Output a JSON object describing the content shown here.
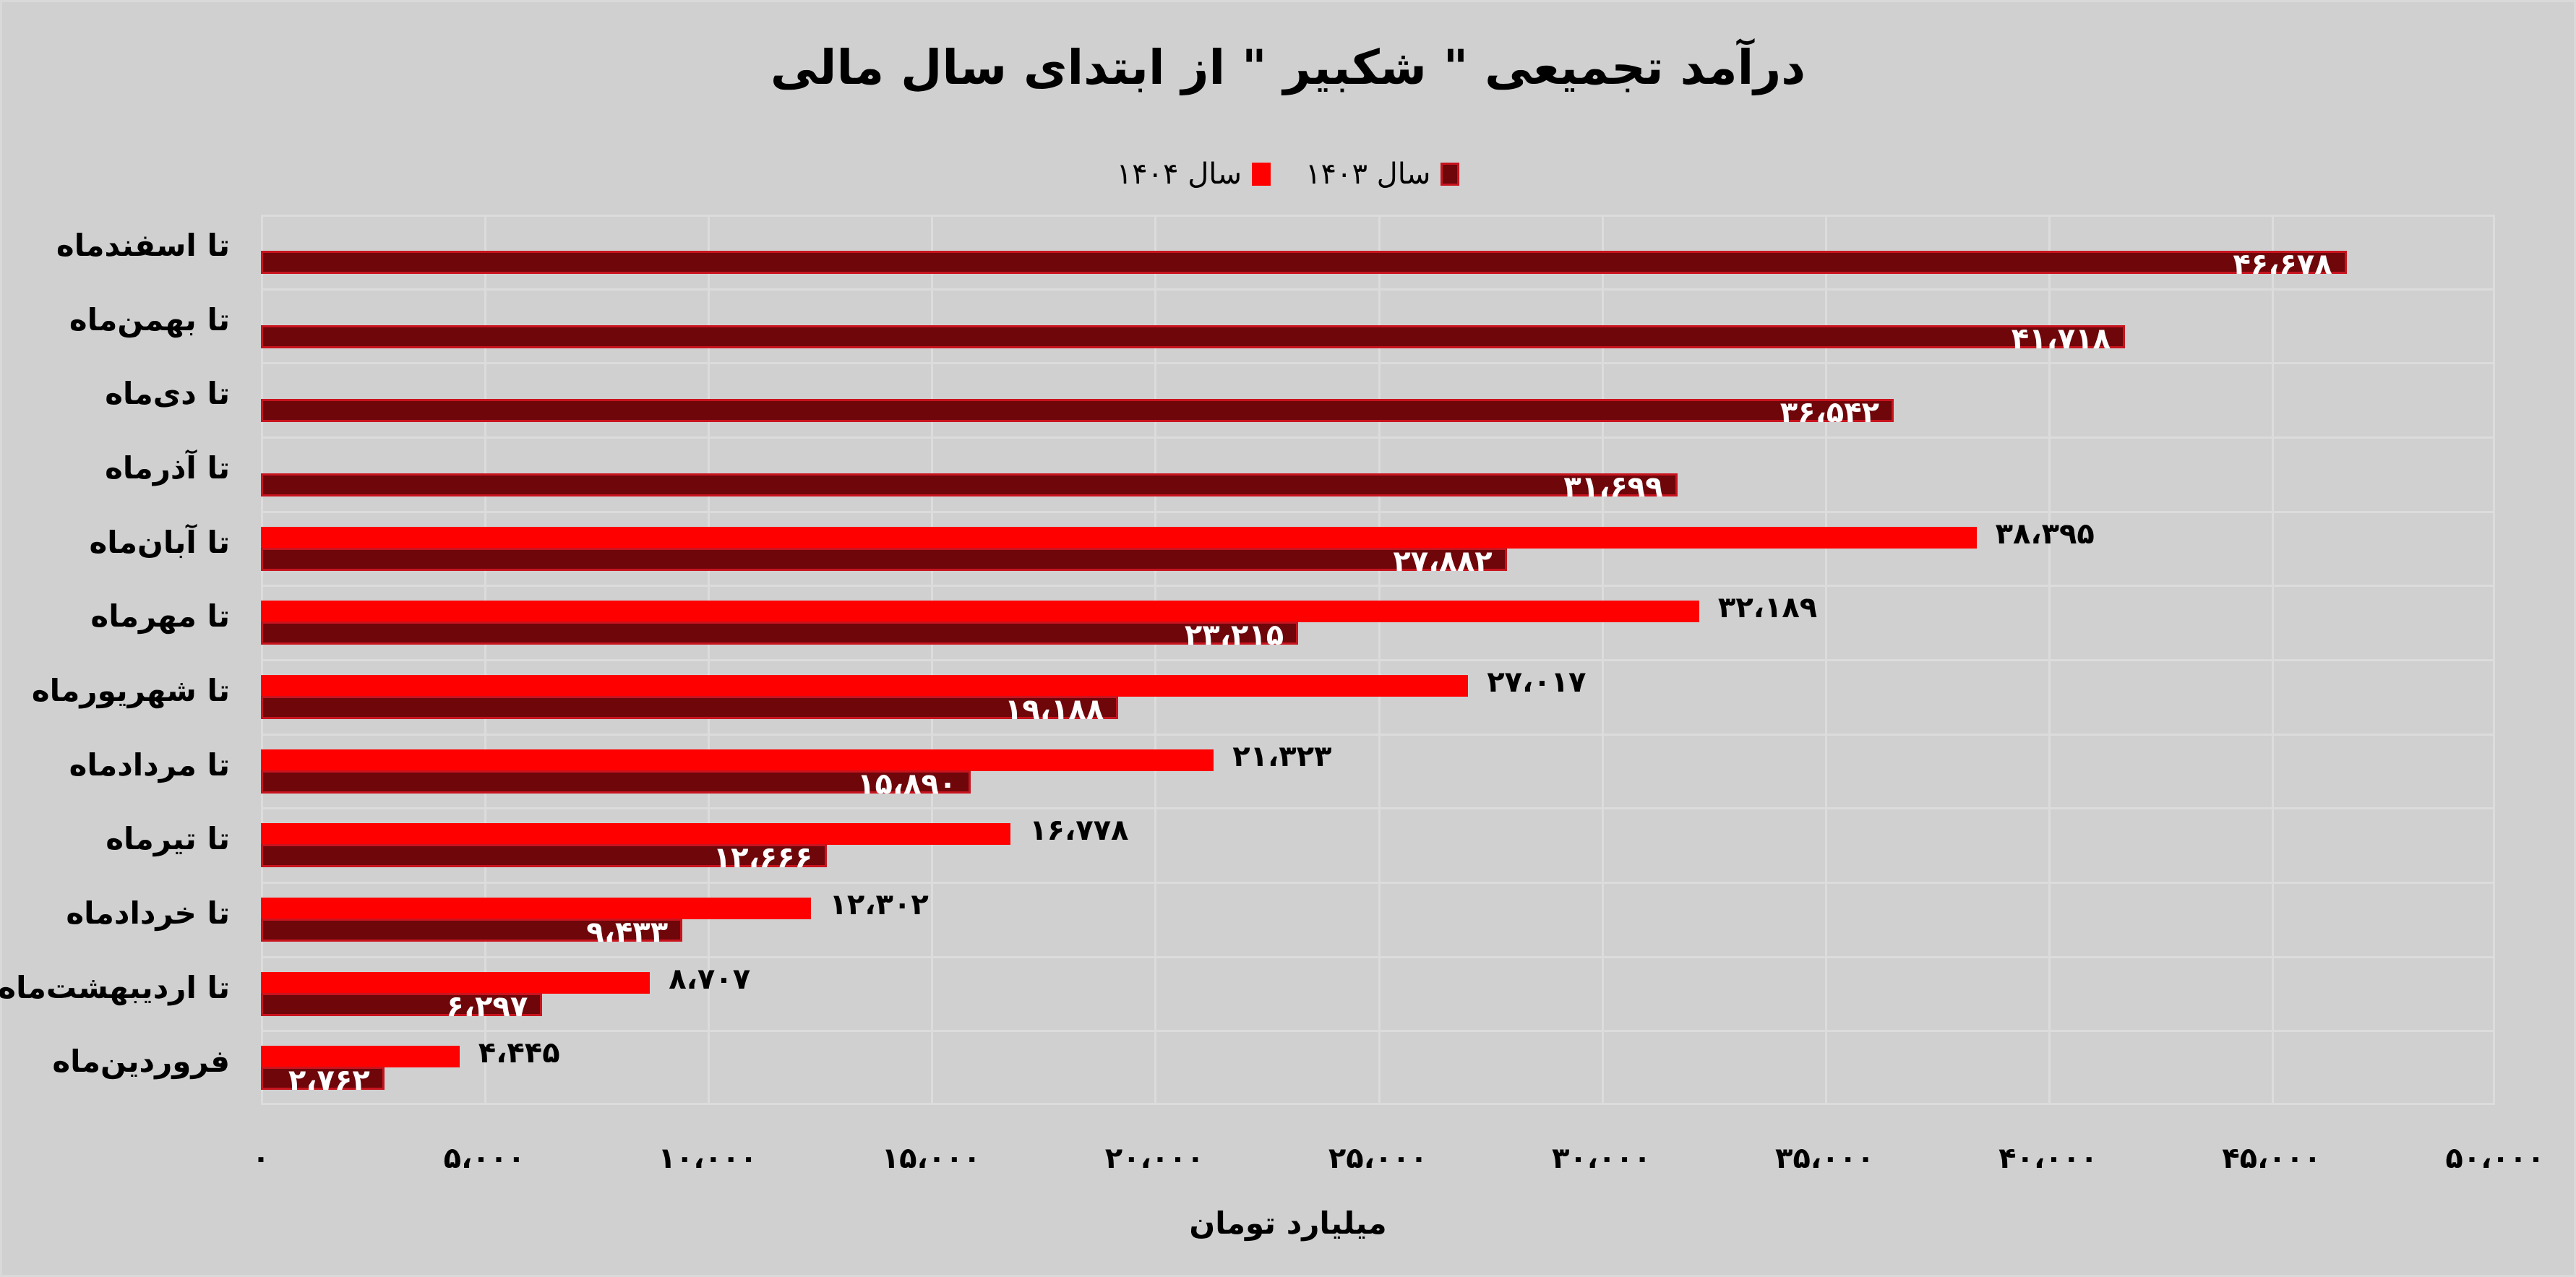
{
  "chart_data": {
    "type": "bar",
    "orientation": "horizontal",
    "title": "درآمد تجمیعی \" شکبیر \" از ابتدای سال مالی",
    "xlabel": "میلیارد تومان",
    "ylabel": "",
    "xlim": [
      0,
      50000
    ],
    "grid": true,
    "legend_position": "top",
    "categories": [
      "تا اسفندماه",
      "تا بهمن‌ماه",
      "تا دی‌ماه",
      "تا آذرماه",
      "تا آبان‌ماه",
      "تا مهرماه",
      "تا شهریورماه",
      "تا مردادماه",
      "تا تیرماه",
      "تا خردادماه",
      "تا اردیبهشت‌ماه",
      "فروردین‌ماه"
    ],
    "series": [
      {
        "name": "سال ۱۴۰۴",
        "color": "#ff0000",
        "values": [
          null,
          null,
          null,
          null,
          38395,
          32189,
          27017,
          21323,
          16778,
          12302,
          8707,
          4445
        ]
      },
      {
        "name": "سال ۱۴۰۳",
        "color": "#6e060a",
        "values": [
          46678,
          41718,
          36542,
          31699,
          27882,
          23215,
          19188,
          15890,
          12666,
          9433,
          6297,
          2762
        ]
      }
    ],
    "x_ticks": [
      "۰",
      "۵،۰۰۰",
      "۱۰،۰۰۰",
      "۱۵،۰۰۰",
      "۲۰،۰۰۰",
      "۲۵،۰۰۰",
      "۳۰،۰۰۰",
      "۳۵،۰۰۰",
      "۴۰،۰۰۰",
      "۴۵،۰۰۰",
      "۵۰،۰۰۰"
    ]
  },
  "legend": {
    "series_1404": "سال ۱۴۰۴",
    "series_1403": "سال ۱۴۰۳"
  },
  "labels_1404": [
    null,
    null,
    null,
    null,
    "۳۸،۳۹۵",
    "۳۲،۱۸۹",
    "۲۷،۰۱۷",
    "۲۱،۳۲۳",
    "۱۶،۷۷۸",
    "۱۲،۳۰۲",
    "۸،۷۰۷",
    "۴،۴۴۵"
  ],
  "labels_1403": [
    "۴۶،۶۷۸",
    "۴۱،۷۱۸",
    "۳۶،۵۴۲",
    "۳۱،۶۹۹",
    "۲۷،۸۸۲",
    "۲۳،۲۱۵",
    "۱۹،۱۸۸",
    "۱۵،۸۹۰",
    "۱۲،۶۶۶",
    "۹،۴۳۳",
    "۶،۲۹۷",
    "۲،۷۶۲"
  ],
  "colors": {
    "bar_1404": "#ff0000",
    "bar_1403": "#6e060a",
    "bar_1403_border": "#c8141e",
    "background": "#d0d0d0"
  }
}
